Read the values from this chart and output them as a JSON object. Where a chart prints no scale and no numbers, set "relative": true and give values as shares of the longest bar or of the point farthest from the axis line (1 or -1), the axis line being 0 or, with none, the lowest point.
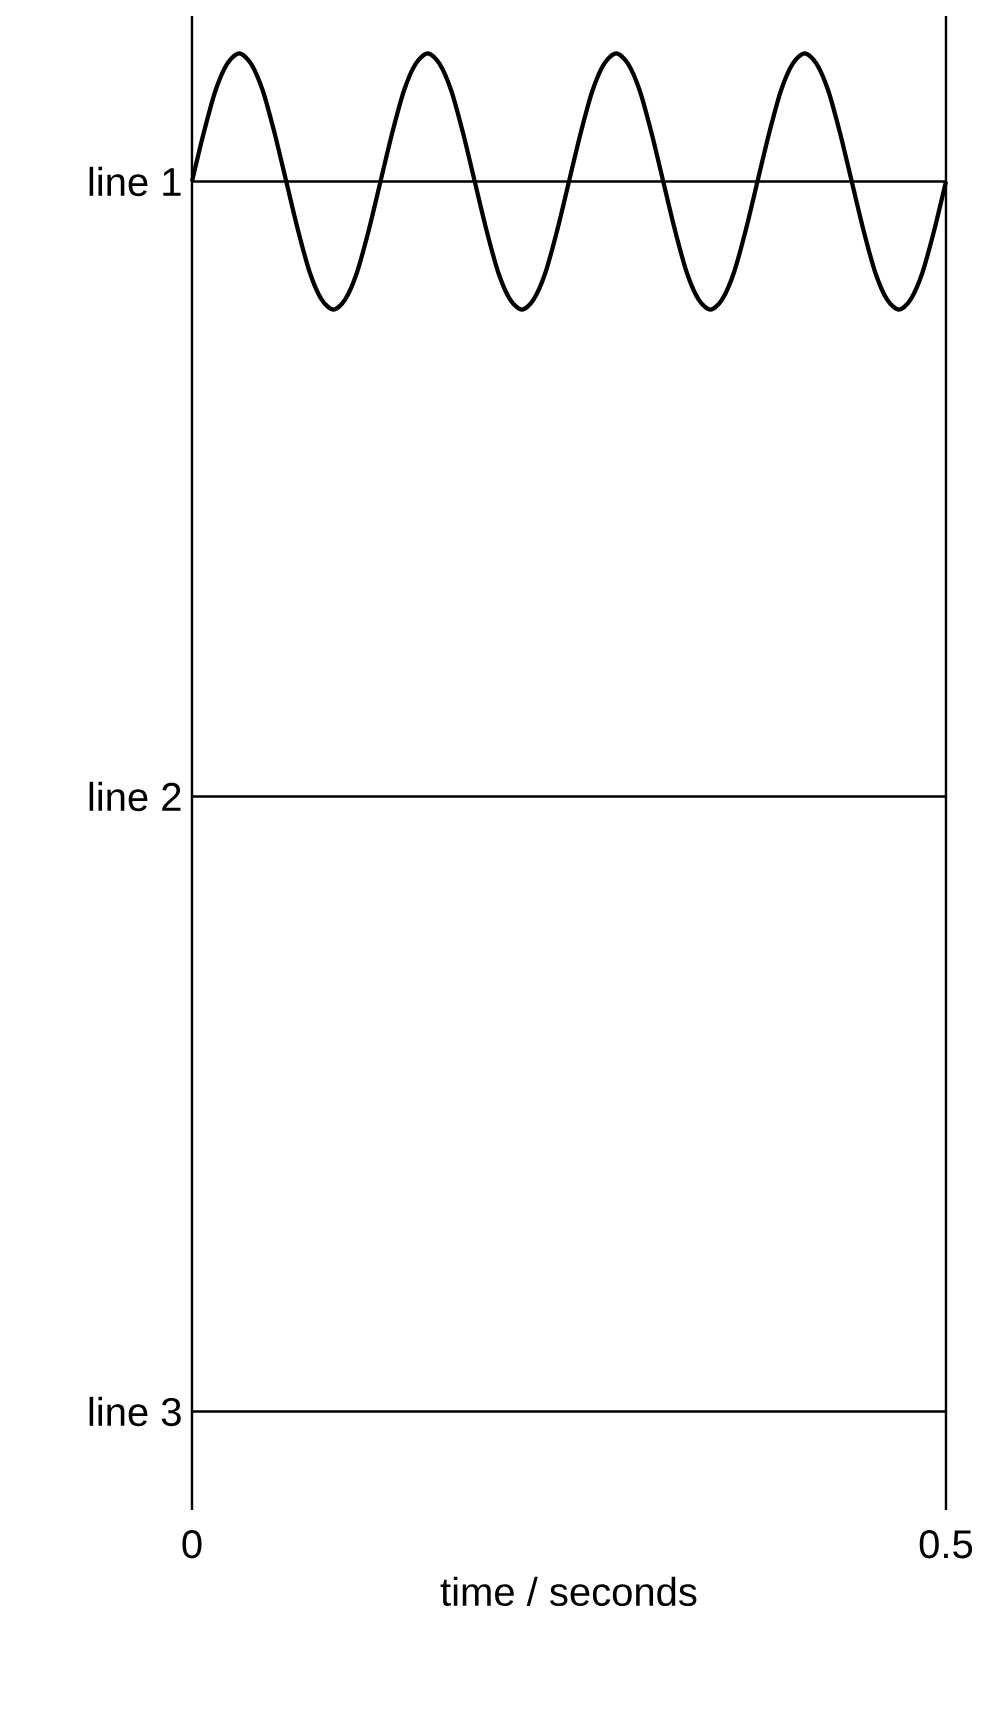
{
  "chart_data": {
    "type": "line",
    "relative": true,
    "xlabel": "time / seconds",
    "xlim": [
      0,
      0.5
    ],
    "xticks": [
      0,
      0.5
    ],
    "series": [
      {
        "color": "#000000",
        "x": [
          0,
          0.0078,
          0.0156,
          0.0234,
          0.0313,
          0.0391,
          0.0469,
          0.0547,
          0.0625,
          0.0703,
          0.0781,
          0.0859,
          0.0938,
          0.1016,
          0.1094,
          0.1172,
          0.125,
          0.1328,
          0.1406,
          0.1484,
          0.1563,
          0.1641,
          0.1719,
          0.1797,
          0.1875,
          0.1953,
          0.2031,
          0.2109,
          0.2188,
          0.2266,
          0.2344,
          0.2422,
          0.25,
          0.2578,
          0.2656,
          0.2734,
          0.2813,
          0.2891,
          0.2969,
          0.3047,
          0.3125,
          0.3203,
          0.3281,
          0.3359,
          0.3438,
          0.3516,
          0.3594,
          0.3672,
          0.375,
          0.3828,
          0.3906,
          0.3984,
          0.4063,
          0.4141,
          0.4219,
          0.4297,
          0.4375,
          0.4453,
          0.4531,
          0.4609,
          0.4688,
          0.4766,
          0.4844,
          0.4922,
          0.5
        ],
        "values": [
          0,
          0.38,
          0.71,
          0.92,
          1,
          0.92,
          0.71,
          0.38,
          0,
          -0.38,
          -0.71,
          -0.92,
          -1,
          -0.92,
          -0.71,
          -0.38,
          0,
          0.38,
          0.71,
          0.92,
          1,
          0.92,
          0.71,
          0.38,
          0,
          -0.38,
          -0.71,
          -0.92,
          -1,
          -0.92,
          -0.71,
          -0.38,
          0,
          0.38,
          0.71,
          0.92,
          1,
          0.92,
          0.71,
          0.38,
          0,
          -0.38,
          -0.71,
          -0.92,
          -1,
          -0.92,
          -0.71,
          -0.38,
          0,
          0.38,
          0.71,
          0.92,
          1,
          0.92,
          0.71,
          0.38,
          0,
          -0.38,
          -0.71,
          -0.92,
          -1,
          -0.92,
          -0.71,
          -0.38,
          0
        ]
      }
    ],
    "ref_lines": [
      {
        "axis": "y",
        "value": 0,
        "label": "line 1",
        "color": "#000000"
      },
      {
        "axis": "y",
        "value": -4.8,
        "label": "line 2",
        "color": "#000000"
      },
      {
        "axis": "y",
        "value": -9.6,
        "label": "line 3",
        "color": "#000000"
      }
    ],
    "line_style": "solid",
    "marker": "none"
  }
}
